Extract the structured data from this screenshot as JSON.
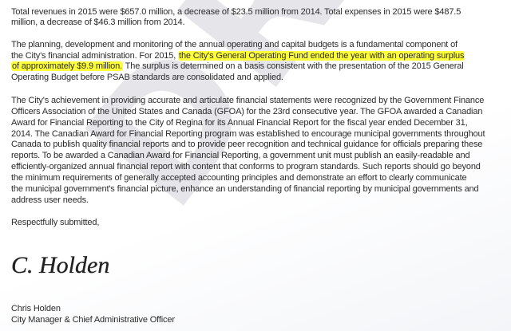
{
  "watermark": "DRAFT",
  "para1": [
    "Total revenues in 2015 were $657.0 million, a decrease of $23.5 million from 2014. Total expenses in 2015 were $487.5",
    "million, a decrease of $46.3 million from 2014."
  ],
  "para2": {
    "line1": "The planning, development and monitoring of the annual operating and capital budgets is a fundamental component of",
    "line2_pre": "the City's financial administration. For 2015, ",
    "line2_highlight": "the City's General Operating Fund ended the year with an operating surplus",
    "line3_highlight": "of approximately $9.9 million.",
    "line3_post": " The surplus is determined on a basis consistent with the presentation of the 2015 General",
    "line4": "Operating Budget before PSAB standards are consolidated and applied."
  },
  "para3": [
    "The City's achievement in providing accurate and articulate financial statements were recognized by the Government Finance",
    "Officers Association of the United States and Canada (GFOA) for the 23rd consecutive year. The GFOA awarded a Canadian",
    "Award for Financial Reporting to the City of Regina for its Annual Financial Report for the fiscal year ended December 31,",
    "2014. The Canadian Award for Financial Reporting program was established to encourage municipal governments throughout",
    "Canada to publish quality financial reports and to provide peer recognition and technical guidance for officials preparing these",
    "reports. To be awarded a Canadian Award for Financial Reporting, a government unit must publish an easily-readable and",
    "efficiently-organized annual financial report with content that conforms to program standards. Such reports should go beyond",
    "the minimum requirements of generally accepted accounting principles and demonstrate an effort to clearly communicate",
    "the municipal government's financial picture, enhance an understanding of financial reporting by municipal governments and",
    "address user needs."
  ],
  "closing": "Respectfully submitted,",
  "signature": "C. Holden",
  "signer_name": "Chris Holden",
  "signer_title": "City Manager & Chief Administrative Officer",
  "colors": {
    "highlight": "#ffff3a",
    "text": "#2b2b2b",
    "watermark": "#ececef"
  }
}
